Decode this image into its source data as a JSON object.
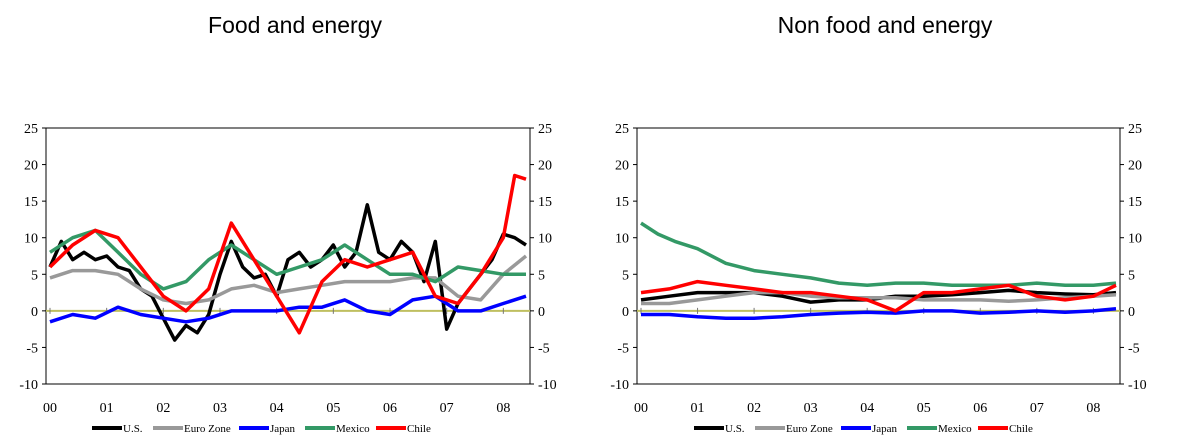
{
  "colors": {
    "U.S.": "#000000",
    "Euro Zone": "#999999",
    "Japan": "#0000ff",
    "Mexico": "#339966",
    "Chile": "#ff0000",
    "zero_line": "#bfbf60"
  },
  "chart_data": [
    {
      "type": "line",
      "title": "Food and energy",
      "xlabel": "",
      "ylabel": "",
      "x_tick_labels": [
        "00",
        "01",
        "02",
        "03",
        "04",
        "05",
        "06",
        "07",
        "08"
      ],
      "x_range": [
        2000.0,
        2008.4
      ],
      "ylim": [
        -10,
        25
      ],
      "y_ticks": [
        -10,
        -5,
        0,
        5,
        10,
        15,
        20,
        25
      ],
      "y_axis_right": true,
      "grid": false,
      "legend_position": "bottom",
      "series": [
        {
          "name": "U.S.",
          "x": [
            2000.0,
            2000.2,
            2000.4,
            2000.6,
            2000.8,
            2001.0,
            2001.2,
            2001.4,
            2001.6,
            2001.8,
            2002.0,
            2002.2,
            2002.4,
            2002.6,
            2002.8,
            2003.0,
            2003.2,
            2003.4,
            2003.6,
            2003.8,
            2004.0,
            2004.2,
            2004.4,
            2004.6,
            2004.8,
            2005.0,
            2005.2,
            2005.4,
            2005.6,
            2005.8,
            2006.0,
            2006.2,
            2006.4,
            2006.6,
            2006.8,
            2007.0,
            2007.2,
            2007.4,
            2007.6,
            2007.8,
            2008.0,
            2008.2,
            2008.4
          ],
          "y": [
            6,
            9.5,
            7,
            8,
            7,
            7.5,
            6,
            5.5,
            3,
            2,
            -1,
            -4,
            -2,
            -3,
            -0.5,
            5,
            9.5,
            6,
            4.5,
            5,
            2,
            7,
            8,
            6,
            7,
            9,
            6,
            8,
            14.5,
            8,
            7,
            9.5,
            8,
            4,
            9.5,
            -2.5,
            1,
            3,
            5,
            7,
            10.5,
            10,
            9
          ]
        },
        {
          "name": "Euro Zone",
          "x": [
            2000.0,
            2000.4,
            2000.8,
            2001.2,
            2001.6,
            2002.0,
            2002.4,
            2002.8,
            2003.2,
            2003.6,
            2004.0,
            2004.4,
            2004.8,
            2005.2,
            2005.6,
            2006.0,
            2006.4,
            2006.8,
            2007.2,
            2007.6,
            2008.0,
            2008.4
          ],
          "y": [
            4.5,
            5.5,
            5.5,
            5,
            3,
            1.5,
            1,
            1.5,
            3,
            3.5,
            2.5,
            3,
            3.5,
            4,
            4,
            4,
            4.5,
            4.5,
            2,
            1.5,
            5,
            7.5
          ]
        },
        {
          "name": "Japan",
          "x": [
            2000.0,
            2000.4,
            2000.8,
            2001.2,
            2001.6,
            2002.0,
            2002.4,
            2002.8,
            2003.2,
            2003.6,
            2004.0,
            2004.4,
            2004.8,
            2005.2,
            2005.6,
            2006.0,
            2006.4,
            2006.8,
            2007.2,
            2007.6,
            2008.0,
            2008.4
          ],
          "y": [
            -1.5,
            -0.5,
            -1,
            0.5,
            -0.5,
            -1,
            -1.5,
            -1,
            0,
            0,
            0,
            0.5,
            0.5,
            1.5,
            0,
            -0.5,
            1.5,
            2,
            0,
            0,
            1,
            2
          ]
        },
        {
          "name": "Mexico",
          "x": [
            2000.0,
            2000.4,
            2000.8,
            2001.2,
            2001.6,
            2002.0,
            2002.4,
            2002.8,
            2003.2,
            2003.6,
            2004.0,
            2004.4,
            2004.8,
            2005.2,
            2005.6,
            2006.0,
            2006.4,
            2006.8,
            2007.2,
            2007.6,
            2008.0,
            2008.4
          ],
          "y": [
            8,
            10,
            11,
            8,
            5,
            3,
            4,
            7,
            9,
            7,
            5,
            6,
            7,
            9,
            7,
            5,
            5,
            4,
            6,
            5.5,
            5,
            5
          ]
        },
        {
          "name": "Chile",
          "x": [
            2000.0,
            2000.4,
            2000.8,
            2001.2,
            2001.6,
            2002.0,
            2002.4,
            2002.8,
            2003.2,
            2003.6,
            2004.0,
            2004.4,
            2004.8,
            2005.2,
            2005.6,
            2006.0,
            2006.4,
            2006.8,
            2007.2,
            2007.6,
            2008.0,
            2008.2,
            2008.4
          ],
          "y": [
            6,
            9,
            11,
            10,
            6,
            2,
            0,
            3,
            12,
            7,
            2,
            -3,
            4,
            7,
            6,
            7,
            8,
            2,
            1,
            5,
            10,
            18.5,
            18
          ]
        }
      ]
    },
    {
      "type": "line",
      "title": "Non food and energy",
      "xlabel": "",
      "ylabel": "",
      "x_tick_labels": [
        "00",
        "01",
        "02",
        "03",
        "04",
        "05",
        "06",
        "07",
        "08"
      ],
      "x_range": [
        2000.0,
        2008.4
      ],
      "ylim": [
        -10,
        25
      ],
      "y_ticks": [
        -10,
        -5,
        0,
        5,
        10,
        15,
        20,
        25
      ],
      "y_axis_right": true,
      "grid": false,
      "legend_position": "bottom",
      "series": [
        {
          "name": "U.S.",
          "x": [
            2000.0,
            2000.5,
            2001.0,
            2001.5,
            2002.0,
            2002.5,
            2003.0,
            2003.5,
            2004.0,
            2004.5,
            2005.0,
            2005.5,
            2006.0,
            2006.5,
            2007.0,
            2007.5,
            2008.0,
            2008.4
          ],
          "y": [
            1.5,
            2,
            2.5,
            2.5,
            2.5,
            2,
            1.2,
            1.5,
            1.5,
            2,
            2,
            2.2,
            2.5,
            2.8,
            2.5,
            2.3,
            2.2,
            2.5
          ]
        },
        {
          "name": "Euro Zone",
          "x": [
            2000.0,
            2000.5,
            2001.0,
            2001.5,
            2002.0,
            2002.5,
            2003.0,
            2003.5,
            2004.0,
            2004.5,
            2005.0,
            2005.5,
            2006.0,
            2006.5,
            2007.0,
            2007.5,
            2008.0,
            2008.4
          ],
          "y": [
            1,
            1,
            1.5,
            2,
            2.5,
            2.5,
            2,
            1.8,
            1.8,
            1.8,
            1.5,
            1.5,
            1.5,
            1.3,
            1.5,
            1.8,
            2,
            2.2
          ]
        },
        {
          "name": "Japan",
          "x": [
            2000.0,
            2000.5,
            2001.0,
            2001.5,
            2002.0,
            2002.5,
            2003.0,
            2003.5,
            2004.0,
            2004.5,
            2005.0,
            2005.5,
            2006.0,
            2006.5,
            2007.0,
            2007.5,
            2008.0,
            2008.4
          ],
          "y": [
            -0.5,
            -0.5,
            -0.8,
            -1,
            -1,
            -0.8,
            -0.5,
            -0.3,
            -0.2,
            -0.3,
            0,
            0,
            -0.3,
            -0.2,
            0,
            -0.2,
            0,
            0.3
          ]
        },
        {
          "name": "Mexico",
          "x": [
            2000.0,
            2000.3,
            2000.6,
            2001.0,
            2001.5,
            2002.0,
            2002.5,
            2003.0,
            2003.5,
            2004.0,
            2004.5,
            2005.0,
            2005.5,
            2006.0,
            2006.5,
            2007.0,
            2007.5,
            2008.0,
            2008.4
          ],
          "y": [
            12,
            10.5,
            9.5,
            8.5,
            6.5,
            5.5,
            5,
            4.5,
            3.8,
            3.5,
            3.8,
            3.8,
            3.5,
            3.5,
            3.5,
            3.8,
            3.5,
            3.5,
            3.8
          ]
        },
        {
          "name": "Chile",
          "x": [
            2000.0,
            2000.5,
            2001.0,
            2001.5,
            2002.0,
            2002.5,
            2003.0,
            2003.5,
            2004.0,
            2004.5,
            2005.0,
            2005.5,
            2006.0,
            2006.5,
            2007.0,
            2007.5,
            2008.0,
            2008.4
          ],
          "y": [
            2.5,
            3,
            4,
            3.5,
            3,
            2.5,
            2.5,
            2,
            1.5,
            0,
            2.5,
            2.5,
            3,
            3.5,
            2,
            1.5,
            2,
            3.5
          ]
        }
      ]
    }
  ]
}
